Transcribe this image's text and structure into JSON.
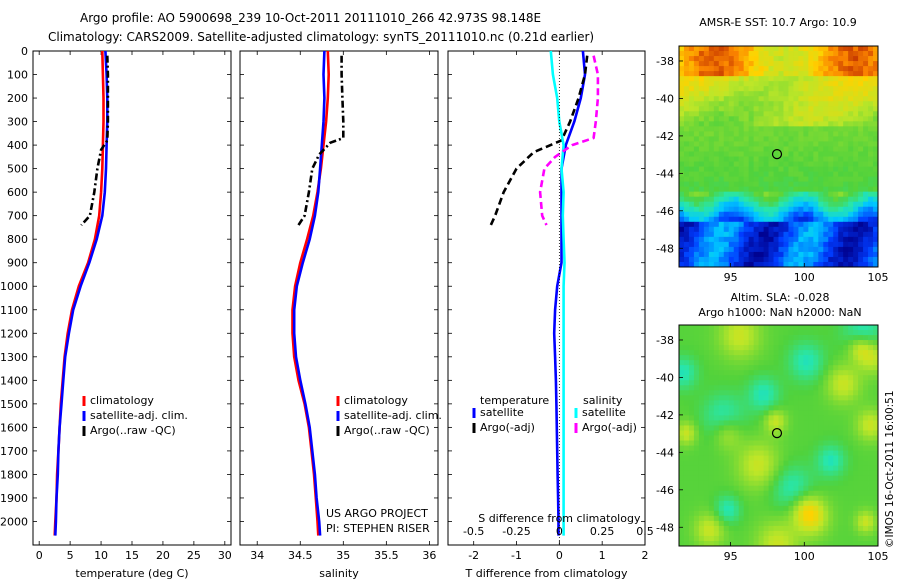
{
  "header": {
    "line1": "Argo profile: AO 5900698_239 10-Oct-2011 20111010_266 42.973S 98.148E",
    "line2": "Climatology: CARS2009. Satellite-adjusted climatology: synTS_20111010.nc (0.21d earlier)"
  },
  "credit": {
    "project": "US ARGO PROJECT",
    "pi": "PI: STEPHEN RISER"
  },
  "side_stamp": "©IMOS 16-Oct-2011 16:00:51",
  "colors": {
    "climatology": "#ff0000",
    "satellite": "#0000ff",
    "argo": "#000000",
    "sal_satellite": "#00ffff",
    "sal_argo": "#ff00ff"
  },
  "chart_data": [
    {
      "type": "line",
      "xlabel": "temperature (deg C)",
      "ylabel": "",
      "xlim": [
        -1,
        31
      ],
      "ylim": [
        2100,
        0
      ],
      "xticks": [
        "0",
        "5",
        "10",
        "15",
        "20",
        "25",
        "30"
      ],
      "yticks": [
        "0",
        "100",
        "200",
        "300",
        "400",
        "500",
        "600",
        "700",
        "800",
        "900",
        "1000",
        "1100",
        "1200",
        "1300",
        "1400",
        "1500",
        "1600",
        "1700",
        "1800",
        "1900",
        "2000"
      ],
      "legend": [
        "climatology",
        "satellite-adj. clim.",
        "Argo(..raw -QC)"
      ],
      "series": [
        {
          "name": "climatology",
          "color": "#ff0000",
          "style": "solid",
          "points": [
            [
              10.2,
              0
            ],
            [
              10.3,
              100
            ],
            [
              10.4,
              200
            ],
            [
              10.4,
              300
            ],
            [
              10.3,
              400
            ],
            [
              10.2,
              500
            ],
            [
              10.0,
              600
            ],
            [
              9.7,
              700
            ],
            [
              9.0,
              800
            ],
            [
              7.9,
              900
            ],
            [
              6.4,
              1000
            ],
            [
              5.3,
              1100
            ],
            [
              4.6,
              1200
            ],
            [
              4.1,
              1300
            ],
            [
              3.8,
              1400
            ],
            [
              3.5,
              1500
            ],
            [
              3.3,
              1600
            ],
            [
              3.1,
              1700
            ],
            [
              2.9,
              1800
            ],
            [
              2.8,
              1900
            ],
            [
              2.6,
              2000
            ],
            [
              2.5,
              2060
            ]
          ]
        },
        {
          "name": "satellite-adj. clim.",
          "color": "#0000ff",
          "style": "solid",
          "points": [
            [
              10.7,
              0
            ],
            [
              10.9,
              100
            ],
            [
              11.0,
              200
            ],
            [
              11.0,
              300
            ],
            [
              10.9,
              400
            ],
            [
              10.8,
              500
            ],
            [
              10.6,
              600
            ],
            [
              10.2,
              700
            ],
            [
              9.3,
              800
            ],
            [
              8.1,
              900
            ],
            [
              6.7,
              1000
            ],
            [
              5.5,
              1100
            ],
            [
              4.8,
              1200
            ],
            [
              4.2,
              1300
            ],
            [
              3.9,
              1400
            ],
            [
              3.6,
              1500
            ],
            [
              3.3,
              1600
            ],
            [
              3.1,
              1700
            ],
            [
              3.0,
              1800
            ],
            [
              2.8,
              1900
            ],
            [
              2.7,
              2000
            ],
            [
              2.6,
              2060
            ]
          ]
        },
        {
          "name": "Argo(..raw -QC)",
          "color": "#000000",
          "style": "dashdot",
          "points": [
            [
              11.0,
              20
            ],
            [
              11.1,
              100
            ],
            [
              11.1,
              200
            ],
            [
              11.1,
              300
            ],
            [
              11.0,
              380
            ],
            [
              10.0,
              420
            ],
            [
              9.4,
              500
            ],
            [
              8.9,
              600
            ],
            [
              8.2,
              700
            ],
            [
              6.8,
              740
            ]
          ]
        }
      ]
    },
    {
      "type": "line",
      "xlabel": "salinity",
      "ylabel": "",
      "xlim": [
        33.8,
        36.1
      ],
      "ylim": [
        2100,
        0
      ],
      "xticks": [
        "34",
        "34.5",
        "35",
        "35.5",
        "36"
      ],
      "legend": [
        "climatology",
        "satellite-adj. clim.",
        "Argo(..raw -QC)"
      ],
      "series": [
        {
          "name": "climatology",
          "color": "#ff0000",
          "style": "solid",
          "points": [
            [
              34.82,
              0
            ],
            [
              34.83,
              100
            ],
            [
              34.82,
              200
            ],
            [
              34.8,
              300
            ],
            [
              34.77,
              400
            ],
            [
              34.74,
              500
            ],
            [
              34.7,
              600
            ],
            [
              34.65,
              700
            ],
            [
              34.58,
              800
            ],
            [
              34.5,
              900
            ],
            [
              34.44,
              1000
            ],
            [
              34.41,
              1100
            ],
            [
              34.41,
              1200
            ],
            [
              34.43,
              1300
            ],
            [
              34.48,
              1400
            ],
            [
              34.55,
              1500
            ],
            [
              34.6,
              1600
            ],
            [
              34.63,
              1700
            ],
            [
              34.66,
              1800
            ],
            [
              34.68,
              1900
            ],
            [
              34.7,
              2000
            ],
            [
              34.71,
              2060
            ]
          ]
        },
        {
          "name": "satellite-adj. clim.",
          "color": "#0000ff",
          "style": "solid",
          "points": [
            [
              34.78,
              0
            ],
            [
              34.77,
              100
            ],
            [
              34.78,
              200
            ],
            [
              34.77,
              300
            ],
            [
              34.75,
              400
            ],
            [
              34.73,
              500
            ],
            [
              34.71,
              600
            ],
            [
              34.67,
              700
            ],
            [
              34.61,
              800
            ],
            [
              34.53,
              900
            ],
            [
              34.46,
              1000
            ],
            [
              34.43,
              1100
            ],
            [
              34.43,
              1200
            ],
            [
              34.45,
              1300
            ],
            [
              34.5,
              1400
            ],
            [
              34.56,
              1500
            ],
            [
              34.61,
              1600
            ],
            [
              34.64,
              1700
            ],
            [
              34.67,
              1800
            ],
            [
              34.69,
              1900
            ],
            [
              34.72,
              2000
            ],
            [
              34.73,
              2060
            ]
          ]
        },
        {
          "name": "Argo(..raw -QC)",
          "color": "#000000",
          "style": "dashdot",
          "points": [
            [
              34.98,
              20
            ],
            [
              34.98,
              100
            ],
            [
              34.99,
              200
            ],
            [
              35.0,
              300
            ],
            [
              35.0,
              370
            ],
            [
              34.85,
              390
            ],
            [
              34.72,
              440
            ],
            [
              34.64,
              500
            ],
            [
              34.6,
              600
            ],
            [
              34.55,
              700
            ],
            [
              34.48,
              740
            ]
          ]
        }
      ]
    },
    {
      "type": "line",
      "xlabel": "T difference from climatology",
      "xlabel_top": "S difference from climatology",
      "xlim": [
        -2.6,
        2.0
      ],
      "ylim": [
        2100,
        0
      ],
      "xticks": [
        "-2",
        "-1",
        "0",
        "1",
        "2"
      ],
      "xticks_top": [
        "-0.5",
        "-0.25",
        "0",
        "0.25",
        "0.5"
      ],
      "legend_titles": [
        "temperature",
        "salinity"
      ],
      "legend": [
        "satellite",
        "Argo(-adj)",
        "satellite",
        "Argo(-adj)"
      ],
      "series": [
        {
          "name": "satellite",
          "group": "temperature",
          "color": "#0000ff",
          "style": "solid",
          "points": [
            [
              0.55,
              0
            ],
            [
              0.6,
              100
            ],
            [
              0.5,
              200
            ],
            [
              0.35,
              300
            ],
            [
              0.15,
              400
            ],
            [
              0.05,
              500
            ],
            [
              0.05,
              600
            ],
            [
              0.05,
              700
            ],
            [
              0.05,
              800
            ],
            [
              0.05,
              900
            ],
            [
              -0.05,
              1000
            ],
            [
              -0.1,
              1100
            ],
            [
              -0.12,
              1200
            ],
            [
              -0.1,
              1300
            ],
            [
              -0.08,
              1400
            ],
            [
              -0.07,
              1500
            ],
            [
              -0.06,
              1600
            ],
            [
              -0.05,
              1700
            ],
            [
              -0.04,
              1800
            ],
            [
              -0.03,
              1900
            ],
            [
              -0.02,
              2000
            ],
            [
              -0.02,
              2060
            ]
          ]
        },
        {
          "name": "Argo(-adj)",
          "group": "temperature",
          "color": "#000000",
          "style": "dashed",
          "points": [
            [
              0.65,
              20
            ],
            [
              0.6,
              100
            ],
            [
              0.45,
              200
            ],
            [
              0.25,
              300
            ],
            [
              0.05,
              380
            ],
            [
              -0.6,
              430
            ],
            [
              -1.0,
              500
            ],
            [
              -1.3,
              600
            ],
            [
              -1.5,
              700
            ],
            [
              -1.6,
              740
            ]
          ]
        },
        {
          "name": "satellite",
          "group": "salinity",
          "color": "#00ffff",
          "style": "solid",
          "points": [
            [
              -0.2,
              0
            ],
            [
              -0.15,
              100
            ],
            [
              -0.05,
              200
            ],
            [
              0.0,
              300
            ],
            [
              0.1,
              400
            ],
            [
              0.05,
              500
            ],
            [
              0.1,
              600
            ],
            [
              0.08,
              700
            ],
            [
              0.1,
              800
            ],
            [
              0.12,
              900
            ],
            [
              0.1,
              1000
            ],
            [
              0.1,
              1100
            ],
            [
              0.1,
              1300
            ],
            [
              0.1,
              1500
            ],
            [
              0.1,
              1700
            ],
            [
              0.1,
              1900
            ],
            [
              0.1,
              2060
            ]
          ]
        },
        {
          "name": "Argo(-adj)",
          "group": "salinity",
          "color": "#ff00ff",
          "style": "dashed",
          "points": [
            [
              0.8,
              20
            ],
            [
              0.9,
              100
            ],
            [
              0.9,
              200
            ],
            [
              0.85,
              300
            ],
            [
              0.8,
              370
            ],
            [
              0.3,
              400
            ],
            [
              -0.1,
              450
            ],
            [
              -0.35,
              500
            ],
            [
              -0.45,
              600
            ],
            [
              -0.4,
              700
            ],
            [
              -0.3,
              740
            ]
          ]
        }
      ]
    },
    {
      "type": "heatmap",
      "title": "AMSR-E SST: 10.7 Argo: 10.9",
      "xlim": [
        91.5,
        105
      ],
      "ylim": [
        -49,
        -37.2
      ],
      "xticks": [
        "95",
        "100",
        "105"
      ],
      "yticks": [
        "-38",
        "-40",
        "-42",
        "-44",
        "-46",
        "-48"
      ],
      "marker": {
        "lon": 98.148,
        "lat": -42.973
      }
    },
    {
      "type": "heatmap",
      "title_line1": "Altim. SLA: -0.028",
      "title_line2": "Argo h1000: NaN h2000: NaN",
      "xlim": [
        91.5,
        105
      ],
      "ylim": [
        -49,
        -37.2
      ],
      "xticks": [
        "95",
        "100",
        "105"
      ],
      "yticks": [
        "-38",
        "-40",
        "-42",
        "-44",
        "-46",
        "-48"
      ],
      "marker": {
        "lon": 98.148,
        "lat": -42.973
      }
    }
  ]
}
